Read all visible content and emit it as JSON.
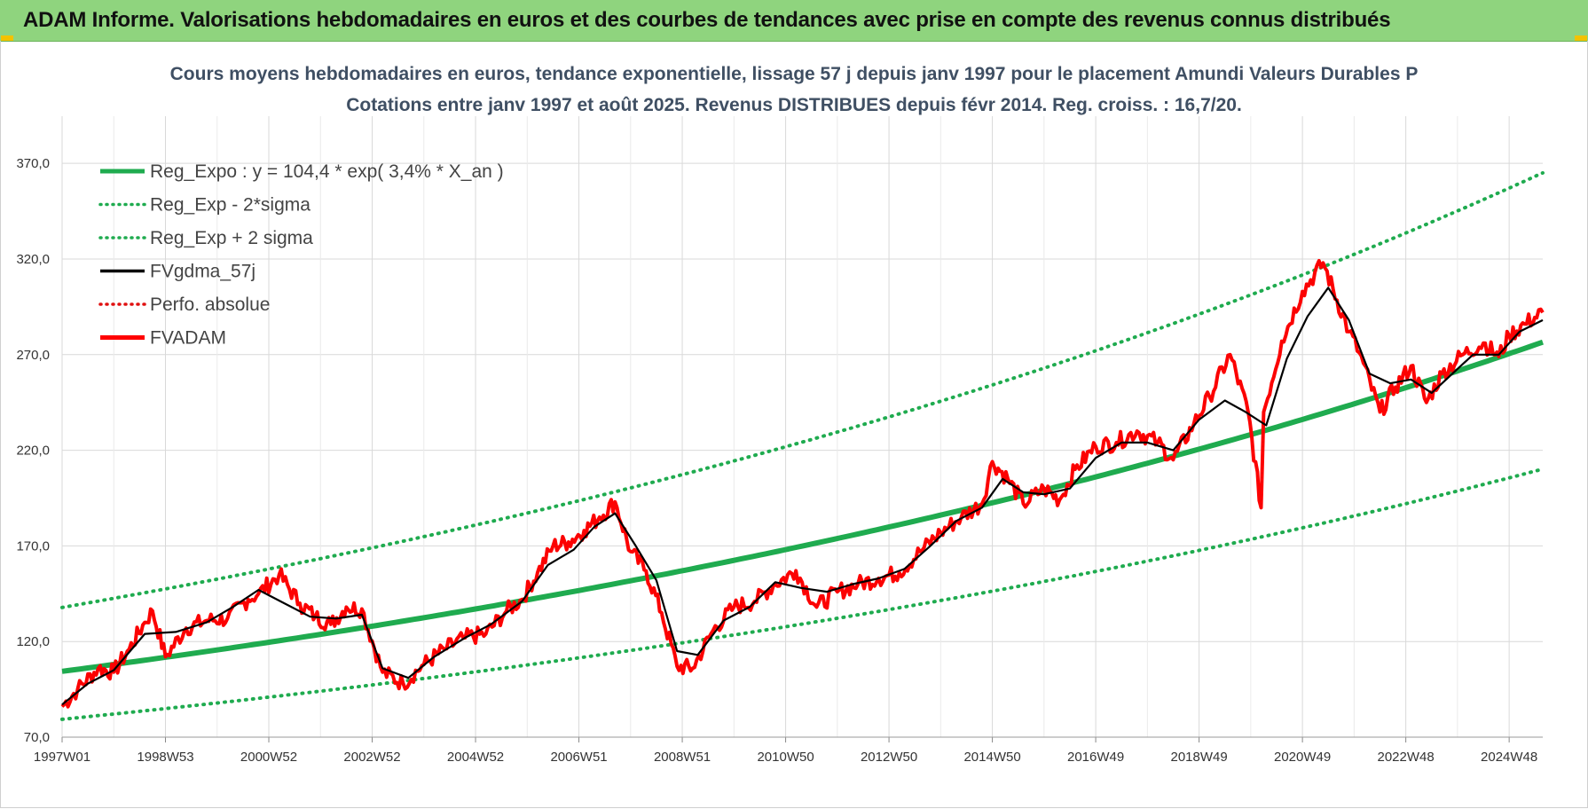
{
  "banner": {
    "title": "ADAM Informe. Valorisations hebdomadaires en euros et des courbes de tendances avec prise en compte des revenus connus distribués"
  },
  "colors": {
    "banner_bg": "#8fd47e",
    "trend": "#1fab4f",
    "band": "#1fab4f",
    "smooth": "#000000",
    "perf": "#e01010",
    "price": "#ff0000",
    "grid": "#d9d9d9"
  },
  "chart_data": {
    "type": "line",
    "title_lines": [
      "Cours moyens hebdomadaires en euros, tendance exponentielle, lissage 57 j depuis janv 1997 pour le placement Amundi Valeurs Durables P",
      "Cotations entre janv 1997 et août 2025. Revenus DISTRIBUES depuis févr 2014. Reg. croiss. : 16,7/20."
    ],
    "xlabel": "",
    "ylabel": "",
    "x_range": [
      1997.0,
      2025.65
    ],
    "ylim": [
      70,
      390
    ],
    "y_ticks": [
      "370,0",
      "320,0",
      "270,0",
      "220,0",
      "170,0",
      "120,0",
      "70,0"
    ],
    "y_tick_values": [
      370,
      320,
      270,
      220,
      170,
      120,
      70
    ],
    "x_ticks": [
      "1997W01",
      "1998W53",
      "2000W52",
      "2002W52",
      "2004W52",
      "2006W51",
      "2008W51",
      "2010W50",
      "2012W50",
      "2014W50",
      "2016W49",
      "2018W49",
      "2020W49",
      "2022W48",
      "2024W48"
    ],
    "x_tick_years": [
      1997.0,
      1999.0,
      2001.0,
      2003.0,
      2005.0,
      2007.0,
      2009.0,
      2011.0,
      2013.0,
      2015.0,
      2017.0,
      2019.0,
      2021.0,
      2023.0,
      2025.0
    ],
    "grid": true,
    "legend_position": "top-left",
    "trend": {
      "a": 104.4,
      "r": 0.034,
      "band_lower_factor": 0.76,
      "band_upper_factor": 1.32
    },
    "series": [
      {
        "name": "Reg_Expo : y = 104,4 * exp( 3,4% *  X_an )",
        "style": "solid-thick",
        "color": "#1fab4f"
      },
      {
        "name": "Reg_Exp - 2*sigma",
        "style": "dotted",
        "color": "#1fab4f"
      },
      {
        "name": "Reg_Exp + 2 sigma",
        "style": "dotted",
        "color": "#1fab4f"
      },
      {
        "name": "FVgdma_57j",
        "style": "solid",
        "color": "#000000"
      },
      {
        "name": "Perfo. absolue",
        "style": "dotted",
        "color": "#e01010"
      },
      {
        "name": "FVADAM",
        "style": "solid-thick",
        "color": "#ff0000"
      }
    ],
    "price": {
      "x": [
        1997.0,
        1997.3,
        1997.7,
        1998.0,
        1998.3,
        1998.6,
        1998.75,
        1999.0,
        1999.4,
        1999.8,
        2000.2,
        2000.6,
        2000.8,
        2001.2,
        2001.6,
        2001.9,
        2002.2,
        2002.5,
        2002.8,
        2003.2,
        2003.6,
        2004.0,
        2004.4,
        2004.8,
        2005.2,
        2005.6,
        2005.9,
        2006.2,
        2006.5,
        2006.8,
        2007.1,
        2007.4,
        2007.7,
        2008.0,
        2008.3,
        2008.6,
        2008.9,
        2009.2,
        2009.6,
        2010.0,
        2010.4,
        2010.8,
        2011.2,
        2011.6,
        2012.0,
        2012.4,
        2012.8,
        2013.2,
        2013.6,
        2014.0,
        2014.4,
        2014.8,
        2015.0,
        2015.3,
        2015.6,
        2016.0,
        2016.3,
        2016.6,
        2017.0,
        2017.4,
        2017.8,
        2018.2,
        2018.5,
        2018.9,
        2019.2,
        2019.6,
        2019.95,
        2020.2,
        2020.25,
        2020.6,
        2021.0,
        2021.4,
        2021.9,
        2022.1,
        2022.5,
        2022.8,
        2023.1,
        2023.4,
        2023.7,
        2024.1,
        2024.5,
        2024.8,
        2025.0,
        2025.3,
        2025.65
      ],
      "y": [
        86,
        95,
        106,
        104,
        116,
        130,
        136,
        112,
        127,
        131,
        132,
        142,
        145,
        155,
        140,
        133,
        129,
        138,
        137,
        104,
        98,
        108,
        116,
        122,
        124,
        136,
        142,
        156,
        170,
        172,
        178,
        185,
        193,
        167,
        157,
        135,
        107,
        106,
        126,
        138,
        141,
        150,
        157,
        138,
        146,
        150,
        153,
        156,
        167,
        177,
        185,
        192,
        214,
        205,
        192,
        200,
        194,
        210,
        222,
        224,
        230,
        224,
        215,
        234,
        248,
        270,
        240,
        190,
        240,
        277,
        303,
        318,
        282,
        271,
        240,
        253,
        264,
        245,
        260,
        270,
        276,
        269,
        280,
        286,
        292
      ]
    },
    "smooth": {
      "x": [
        1997.0,
        1997.5,
        1998.0,
        1998.6,
        1999.2,
        1999.8,
        2000.3,
        2000.8,
        2001.3,
        2001.8,
        2002.3,
        2002.8,
        2003.2,
        2003.7,
        2004.2,
        2004.8,
        2005.3,
        2005.9,
        2006.4,
        2006.9,
        2007.3,
        2007.7,
        2008.1,
        2008.5,
        2008.9,
        2009.3,
        2009.8,
        2010.3,
        2010.8,
        2011.3,
        2011.8,
        2012.3,
        2012.8,
        2013.3,
        2013.8,
        2014.3,
        2014.8,
        2015.2,
        2015.6,
        2016.0,
        2016.5,
        2017.0,
        2017.5,
        2018.0,
        2018.5,
        2019.0,
        2019.5,
        2019.9,
        2020.3,
        2020.7,
        2021.1,
        2021.5,
        2021.9,
        2022.3,
        2022.7,
        2023.1,
        2023.5,
        2023.9,
        2024.3,
        2024.8,
        2025.2,
        2025.65
      ],
      "y": [
        87,
        98,
        105,
        124,
        125,
        130,
        138,
        147,
        140,
        133,
        132,
        134,
        106,
        101,
        112,
        122,
        129,
        141,
        160,
        168,
        180,
        187,
        170,
        152,
        115,
        113,
        131,
        138,
        151,
        148,
        146,
        150,
        153,
        158,
        170,
        183,
        190,
        205,
        198,
        197,
        200,
        216,
        224,
        224,
        220,
        236,
        246,
        240,
        233,
        268,
        290,
        305,
        288,
        260,
        255,
        257,
        250,
        260,
        270,
        270,
        282,
        288
      ]
    }
  }
}
